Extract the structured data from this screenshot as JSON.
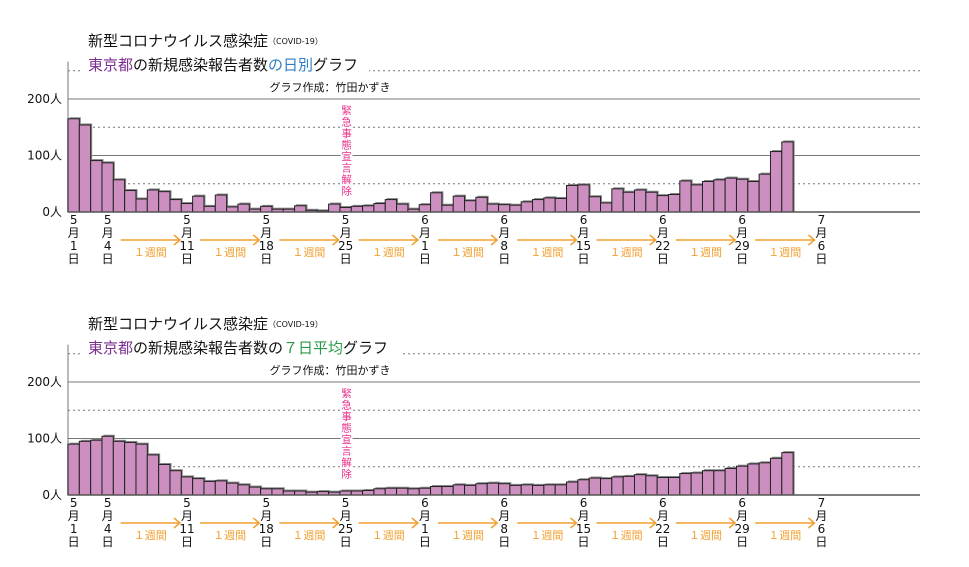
{
  "colors": {
    "bar": "#cc8fbf",
    "bar_stroke": "#222222",
    "grid": "#777777",
    "accent_purple": "#7b2f8e",
    "accent_blue": "#2e7ec4",
    "accent_green": "#2a9a4a",
    "emergency": "#e8308a",
    "arrow": "#f0a030"
  },
  "chart_data": [
    {
      "type": "bar",
      "title": "新型コロナウイルス感染症",
      "title_note": "（COVID-19）",
      "subtitle_parts": [
        {
          "text": "東京都",
          "color": "purple"
        },
        {
          "text": "の新規感染報告者数",
          "color": "black"
        },
        {
          "text": "の日別",
          "color": "blue"
        },
        {
          "text": "グラフ",
          "color": "black"
        }
      ],
      "credit": "グラフ作成：竹田かずき",
      "annotation": "緊急事態宣言解除",
      "annotation_day_index": 24.5,
      "ylim": [
        0,
        275
      ],
      "yticks": [
        {
          "v": 0,
          "label": "0人"
        },
        {
          "v": 100,
          "label": "100人"
        },
        {
          "v": 200,
          "label": "200人"
        }
      ],
      "dashed_gridlines": [
        50,
        150,
        250
      ],
      "start_date": "5月1日",
      "values": [
        165,
        154,
        91,
        87,
        57,
        38,
        23,
        39,
        36,
        22,
        15,
        28,
        10,
        30,
        9,
        14,
        5,
        10,
        5,
        5,
        11,
        3,
        2,
        14,
        8,
        10,
        11,
        15,
        22,
        14,
        5,
        13,
        34,
        12,
        28,
        20,
        26,
        14,
        13,
        12,
        18,
        22,
        25,
        24,
        47,
        48,
        27,
        16,
        41,
        35,
        39,
        35,
        29,
        31,
        55,
        48,
        54,
        57,
        60,
        58,
        54,
        67,
        107,
        124
      ]
    },
    {
      "type": "bar",
      "title": "新型コロナウイルス感染症",
      "title_note": "（COVID-19）",
      "subtitle_parts": [
        {
          "text": "東京都",
          "color": "purple"
        },
        {
          "text": "の新規感染報告者数の",
          "color": "black"
        },
        {
          "text": "７日平均",
          "color": "green"
        },
        {
          "text": "グラフ",
          "color": "black"
        }
      ],
      "credit": "グラフ作成：竹田かずき",
      "annotation": "緊急事態宣言解除",
      "annotation_day_index": 24.5,
      "ylim": [
        0,
        275
      ],
      "yticks": [
        {
          "v": 0,
          "label": "0人"
        },
        {
          "v": 100,
          "label": "100人"
        },
        {
          "v": 200,
          "label": "200人"
        }
      ],
      "dashed_gridlines": [
        50,
        150,
        250
      ],
      "start_date": "5月1日",
      "values": [
        90,
        95,
        97,
        104,
        95,
        93,
        90,
        71,
        54,
        43,
        32,
        29,
        24,
        25,
        21,
        18,
        14,
        11,
        11,
        7,
        7,
        5,
        6,
        5,
        7,
        7,
        8,
        11,
        12,
        12,
        11,
        12,
        15,
        15,
        18,
        17,
        20,
        21,
        20,
        17,
        18,
        17,
        18,
        18,
        23,
        27,
        30,
        29,
        32,
        33,
        36,
        34,
        31,
        31,
        38,
        39,
        43,
        43,
        47,
        51,
        55,
        57,
        65,
        75
      ]
    }
  ],
  "x_labels": [
    {
      "day": 0,
      "month": "5",
      "date": "1"
    },
    {
      "day": 3,
      "month": "5",
      "date": "4"
    },
    {
      "day": 10,
      "month": "5",
      "date": "11"
    },
    {
      "day": 17,
      "month": "5",
      "date": "18"
    },
    {
      "day": 24,
      "month": "5",
      "date": "25"
    },
    {
      "day": 31,
      "month": "6",
      "date": "1"
    },
    {
      "day": 38,
      "month": "6",
      "date": "8"
    },
    {
      "day": 45,
      "month": "6",
      "date": "15"
    },
    {
      "day": 52,
      "month": "6",
      "date": "22"
    },
    {
      "day": 59,
      "month": "6",
      "date": "29"
    },
    {
      "day": 66,
      "month": "7",
      "date": "6"
    }
  ],
  "month_char": "月",
  "day_char": "日",
  "week_label": "１週間"
}
